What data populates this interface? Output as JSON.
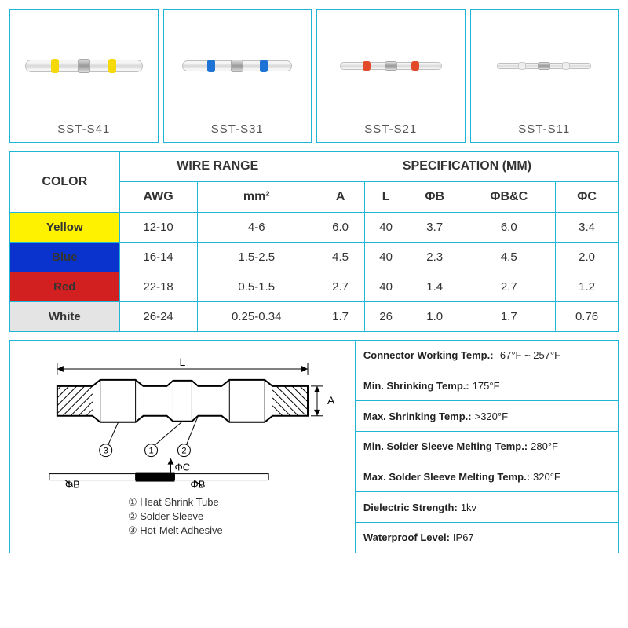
{
  "products": [
    {
      "label": "SST-S41",
      "class": "yellow"
    },
    {
      "label": "SST-S31",
      "class": "blue"
    },
    {
      "label": "SST-S21",
      "class": "red"
    },
    {
      "label": "SST-S11",
      "class": "white"
    }
  ],
  "table": {
    "header": {
      "color": "COLOR",
      "wire_range": "WIRE RANGE",
      "specification": "SPECIFICATION    (MM)",
      "awg": "AWG",
      "mm2": "mm²",
      "A": "A",
      "L": "L",
      "phiB": "ΦB",
      "phiBC": "ΦB&C",
      "phiC": "ΦC"
    },
    "rows": [
      {
        "colorClass": "color-yellow",
        "color": "Yellow",
        "awg": "12-10",
        "mm2": "4-6",
        "A": "6.0",
        "L": "40",
        "phiB": "3.7",
        "phiBC": "6.0",
        "phiC": "3.4"
      },
      {
        "colorClass": "color-blue",
        "color": "Blue",
        "awg": "16-14",
        "mm2": "1.5-2.5",
        "A": "4.5",
        "L": "40",
        "phiB": "2.3",
        "phiBC": "4.5",
        "phiC": "2.0"
      },
      {
        "colorClass": "color-red",
        "color": "Red",
        "awg": "22-18",
        "mm2": "0.5-1.5",
        "A": "2.7",
        "L": "40",
        "phiB": "1.4",
        "phiBC": "2.7",
        "phiC": "1.2"
      },
      {
        "colorClass": "color-white",
        "color": "White",
        "awg": "26-24",
        "mm2": "0.25-0.34",
        "A": "1.7",
        "L": "26",
        "phiB": "1.0",
        "phiBC": "1.7",
        "phiC": "0.76"
      }
    ]
  },
  "diagram_legend": {
    "l1": "① Heat Shrink Tube",
    "l2": "② Solder Sleeve",
    "l3": "③ Hot-Melt Adhesive"
  },
  "diagram_labels": {
    "L": "L",
    "A": "A",
    "n1": "①",
    "n2": "②",
    "n3": "③",
    "phiB": "ΦB",
    "phiC": "ΦC"
  },
  "specs": [
    {
      "label": "Connector Working Temp.:",
      "value": " -67°F ~ 257°F"
    },
    {
      "label": "Min. Shrinking Temp.:",
      "value": "  175°F"
    },
    {
      "label": "Max. Shrinking Temp.:",
      "value": "  >320°F"
    },
    {
      "label": "Min. Solder Sleeve Melting Temp.:",
      "value": "  280°F"
    },
    {
      "label": "Max. Solder Sleeve Melting Temp.:",
      "value": "  320°F"
    },
    {
      "label": "Dielectric Strength:",
      "value": " 1kv"
    },
    {
      "label": "Waterproof Level:",
      "value": " IP67"
    }
  ]
}
